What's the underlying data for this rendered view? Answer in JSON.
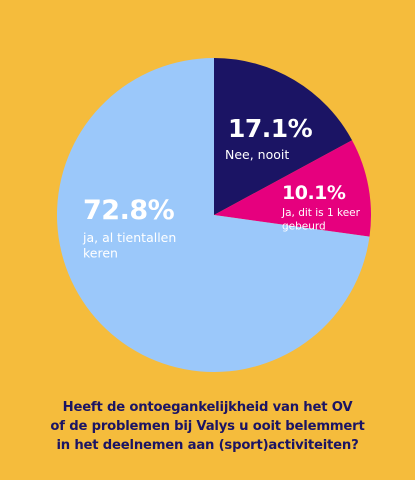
{
  "chart_data": {
    "type": "pie",
    "title": "",
    "slices": [
      {
        "label": "Nee, nooit",
        "value": 17.1,
        "value_label": "17.1%",
        "color": "#1B1464"
      },
      {
        "label": "Ja, dit is 1 keer gebeurd",
        "value": 10.1,
        "value_label": "10.1%",
        "color": "#E6007E"
      },
      {
        "label": "ja, al tientallen keren",
        "value": 72.8,
        "value_label": "72.8%",
        "color": "#9BC8FA"
      }
    ],
    "start_angle": "12 o'clock",
    "direction": "clockwise",
    "legend": "none"
  },
  "question": {
    "line1": "Heeft de ontoegankelijkheid van het OV",
    "line2": "of de problemen bij Valys u ooit belemmert",
    "line3": "in het deelnemen aan (sport)activiteiten?"
  },
  "colors": {
    "background": "#F5BC3C",
    "label_text": "#FFFFFF",
    "question_text": "#1B1464"
  }
}
